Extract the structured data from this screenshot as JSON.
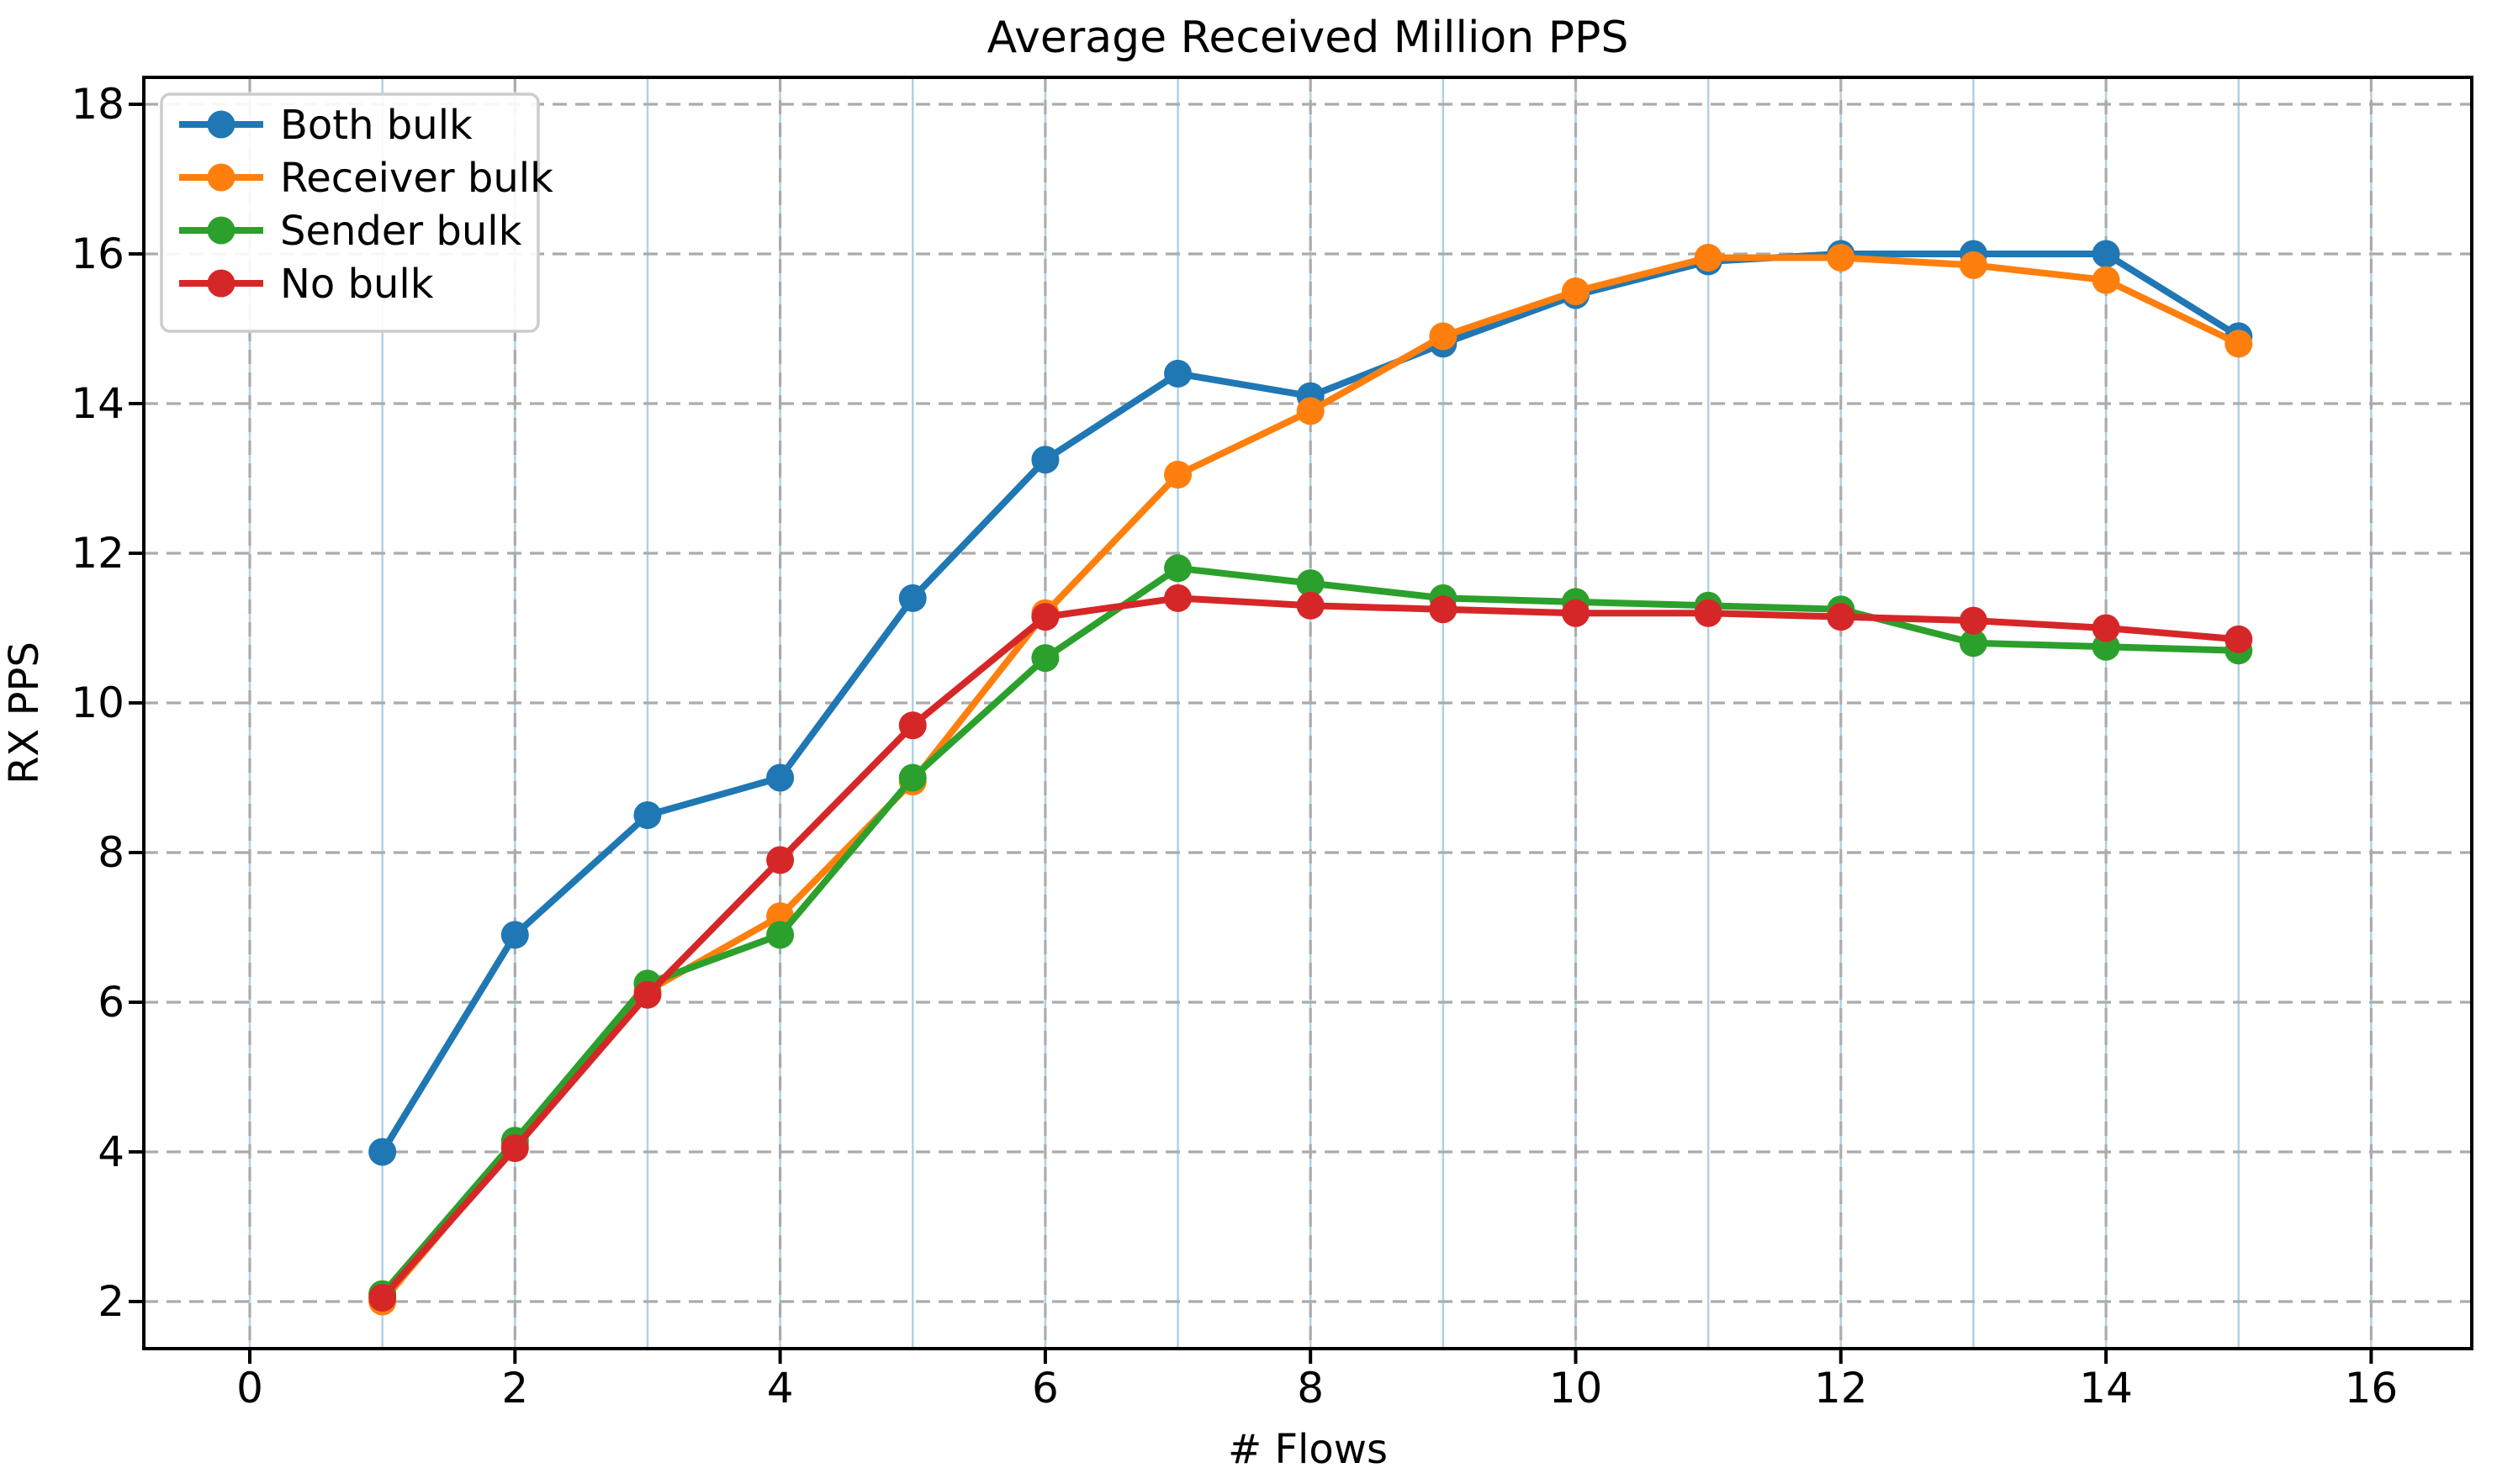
{
  "chart_data": {
    "type": "line",
    "title": "Average Received Million PPS",
    "xlabel": "# Flows",
    "ylabel": "RX PPS",
    "x": [
      1,
      2,
      3,
      4,
      5,
      6,
      7,
      8,
      9,
      10,
      11,
      12,
      13,
      14,
      15
    ],
    "series": [
      {
        "name": "Both bulk",
        "color": "#1f77b4",
        "values": [
          4.0,
          6.9,
          8.5,
          9.0,
          11.4,
          13.25,
          14.4,
          14.1,
          14.8,
          15.45,
          15.9,
          16.0,
          16.0,
          16.0,
          14.9
        ]
      },
      {
        "name": "Receiver bulk",
        "color": "#ff7f0e",
        "values": [
          2.0,
          4.1,
          6.15,
          7.15,
          8.95,
          11.2,
          13.05,
          13.9,
          14.9,
          15.5,
          15.95,
          15.95,
          15.85,
          15.65,
          14.8
        ]
      },
      {
        "name": "Sender bulk",
        "color": "#2ca02c",
        "values": [
          2.1,
          4.15,
          6.25,
          6.9,
          9.0,
          10.6,
          11.8,
          11.6,
          11.4,
          11.35,
          11.3,
          11.25,
          10.8,
          10.75,
          10.7
        ]
      },
      {
        "name": "No bulk",
        "color": "#d62728",
        "values": [
          2.05,
          4.05,
          6.1,
          7.9,
          9.7,
          11.15,
          11.4,
          11.3,
          11.25,
          11.2,
          11.2,
          11.15,
          11.1,
          11.0,
          10.85
        ]
      }
    ],
    "xticks": [
      0,
      2,
      4,
      6,
      8,
      10,
      12,
      14,
      16
    ],
    "xtick_labels": [
      "0",
      "2",
      "4",
      "6",
      "8",
      "10",
      "12",
      "14",
      "16"
    ],
    "yticks": [
      2,
      4,
      6,
      8,
      10,
      12,
      14,
      16,
      18
    ],
    "ytick_labels": [
      "2",
      "4",
      "6",
      "8",
      "10",
      "12",
      "14",
      "16",
      "18"
    ],
    "xlim": [
      -0.8,
      16.76
    ],
    "ylim": [
      1.37,
      18.36
    ],
    "grid": {
      "major_dashed_color": "#ababab",
      "minor_vline_color": "#aed2e8",
      "minor_vlines_x": [
        0,
        1,
        2,
        3,
        4,
        5,
        6,
        7,
        8,
        9,
        10,
        11,
        12,
        13,
        14,
        15,
        16
      ]
    },
    "legend": {
      "position": "upper-left",
      "entries": [
        "Both bulk",
        "Receiver bulk",
        "Sender bulk",
        "No bulk"
      ]
    }
  }
}
